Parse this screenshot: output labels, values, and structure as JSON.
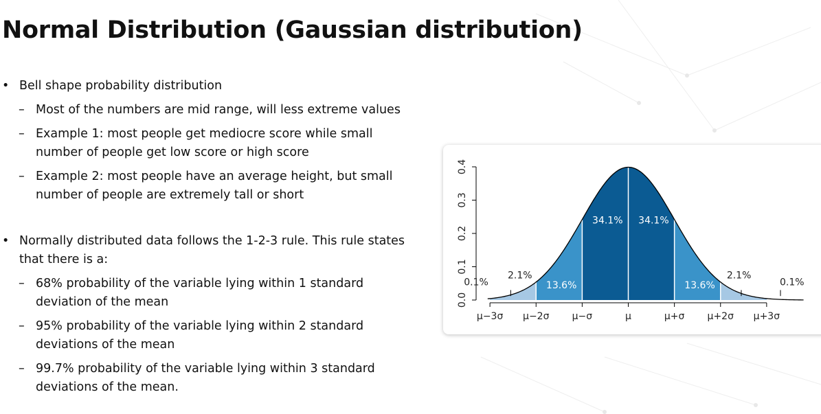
{
  "slide": {
    "title": "Normal Distribution (Gaussian distribution)",
    "bullets": [
      {
        "text": "Bell shape probability distribution",
        "subs": [
          [
            "Most of the numbers are mid range, will less extreme values"
          ],
          [
            "Example 1: most people get mediocre score while small",
            "number of people get low score or high score"
          ],
          [
            "Example 2: most people have an average height, but small",
            "number of people are extremely tall or short"
          ]
        ]
      },
      {
        "text": [
          "Normally distributed data follows the 1-2-3 rule. This rule states",
          "that there is a:"
        ],
        "subs": [
          [
            "68% probability of the variable lying within 1 standard",
            "deviation of the mean"
          ],
          [
            "95% probability of the variable lying within 2 standard",
            "deviations of the mean"
          ],
          [
            "99.7% probability of the variable lying within 3 standard",
            "deviations of the mean."
          ]
        ]
      }
    ]
  },
  "chart_data": {
    "type": "area",
    "x_tick_labels": [
      "μ−3σ",
      "μ−2σ",
      "μ−σ",
      "μ",
      "μ+σ",
      "μ+2σ",
      "μ+3σ"
    ],
    "x_ticks": [
      -3,
      -2,
      -1,
      0,
      1,
      2,
      3
    ],
    "xlim": [
      -3.3,
      4.0
    ],
    "ylim": [
      0.0,
      0.4
    ],
    "y_ticks": [
      0.0,
      0.1,
      0.2,
      0.3,
      0.4
    ],
    "y_tick_labels": [
      "0.0",
      "0.1",
      "0.2",
      "0.3",
      "0.4"
    ],
    "grid": false,
    "regions": [
      {
        "from": -3,
        "to": -2,
        "label": "2.1%",
        "color": "#a6c8e4"
      },
      {
        "from": -2,
        "to": -1,
        "label": "13.6%",
        "color": "#3a93c9"
      },
      {
        "from": -1,
        "to": 0,
        "label": "34.1%",
        "color": "#0b5b93"
      },
      {
        "from": 0,
        "to": 1,
        "label": "34.1%",
        "color": "#0b5b93"
      },
      {
        "from": 1,
        "to": 2,
        "label": "13.6%",
        "color": "#3a93c9"
      },
      {
        "from": 2,
        "to": 3,
        "label": "2.1%",
        "color": "#a6c8e4"
      }
    ],
    "tail_labels": [
      "0.1%",
      "0.1%"
    ]
  }
}
